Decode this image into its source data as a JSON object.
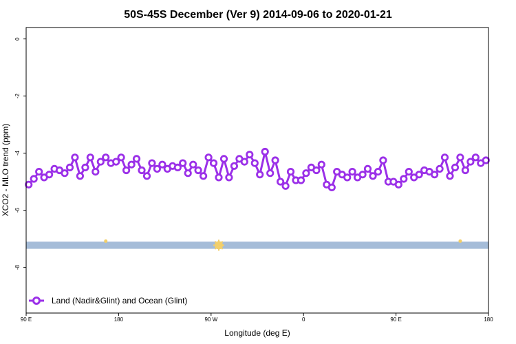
{
  "chart_data": {
    "type": "line",
    "title": "50S-45S December (Ver 9)   2014-09-06 to 2020-01-21",
    "xlabel": "Longitude (deg E)",
    "ylabel": "XCO2 - MLO trend (ppm)",
    "xlim": [
      90,
      450
    ],
    "ylim": [
      -9.6,
      0.4
    ],
    "x_ticks": [
      {
        "value": 90,
        "label": "90 E"
      },
      {
        "value": 162,
        "label": "180"
      },
      {
        "value": 234,
        "label": "90 W"
      },
      {
        "value": 306,
        "label": "0"
      },
      {
        "value": 378,
        "label": "90 E"
      },
      {
        "value": 450,
        "label": "180"
      }
    ],
    "y_ticks": [
      {
        "value": 0,
        "label": "0"
      },
      {
        "value": -2,
        "label": "-2"
      },
      {
        "value": -4,
        "label": "-4"
      },
      {
        "value": -6,
        "label": "-6"
      },
      {
        "value": -8,
        "label": "-8"
      }
    ],
    "grid": false,
    "legend_position": "bottom-left",
    "series": [
      {
        "name": "Land (Nadir&Glint) and Ocean (Glint)",
        "color": "#9b30e8",
        "x": [
          92,
          96,
          100,
          104,
          108,
          112,
          116,
          120,
          124,
          128,
          132,
          136,
          140,
          144,
          148,
          152,
          156,
          160,
          164,
          168,
          172,
          176,
          180,
          184,
          188,
          192,
          196,
          200,
          204,
          208,
          212,
          216,
          220,
          224,
          228,
          232,
          236,
          240,
          244,
          248,
          252,
          256,
          260,
          264,
          268,
          272,
          276,
          280,
          284,
          288,
          292,
          296,
          300,
          304,
          308,
          312,
          316,
          320,
          324,
          328,
          332,
          336,
          340,
          344,
          348,
          352,
          356,
          360,
          364,
          368,
          372,
          376,
          380,
          384,
          388,
          392,
          396,
          400,
          404,
          408,
          412,
          416,
          420,
          424,
          428,
          432,
          436,
          440,
          444,
          448
        ],
        "y": [
          -5.1,
          -4.9,
          -4.65,
          -4.85,
          -4.75,
          -4.55,
          -4.6,
          -4.7,
          -4.5,
          -4.15,
          -4.8,
          -4.5,
          -4.15,
          -4.65,
          -4.3,
          -4.15,
          -4.35,
          -4.3,
          -4.15,
          -4.6,
          -4.4,
          -4.2,
          -4.6,
          -4.8,
          -4.35,
          -4.55,
          -4.4,
          -4.55,
          -4.45,
          -4.5,
          -4.35,
          -4.7,
          -4.4,
          -4.6,
          -4.8,
          -4.15,
          -4.35,
          -4.85,
          -4.2,
          -4.85,
          -4.45,
          -4.2,
          -4.3,
          -4.05,
          -4.35,
          -4.75,
          -3.95,
          -4.7,
          -4.25,
          -5.0,
          -5.15,
          -4.65,
          -4.95,
          -4.95,
          -4.7,
          -4.5,
          -4.6,
          -4.4,
          -5.1,
          -5.2,
          -4.65,
          -4.75,
          -4.85,
          -4.65,
          -4.85,
          -4.75,
          -4.55,
          -4.8,
          -4.65,
          -4.25,
          -5.0,
          -5.0,
          -5.1,
          -4.9,
          -4.65,
          -4.85,
          -4.75,
          -4.6,
          -4.65,
          -4.75,
          -4.55,
          -4.15,
          -4.8,
          -4.5,
          -4.15,
          -4.6,
          -4.3,
          -4.15,
          -4.35,
          -4.25
        ]
      }
    ],
    "band": {
      "y_min": -7.35,
      "y_max": -7.1,
      "color": "#a5bcd8"
    },
    "band_markers": [
      {
        "x": 152,
        "color": "#f2cf6a",
        "size": "small"
      },
      {
        "x": 240,
        "color": "#f2cf6a",
        "size": "large"
      },
      {
        "x": 428,
        "color": "#f2cf6a",
        "size": "small"
      }
    ]
  }
}
